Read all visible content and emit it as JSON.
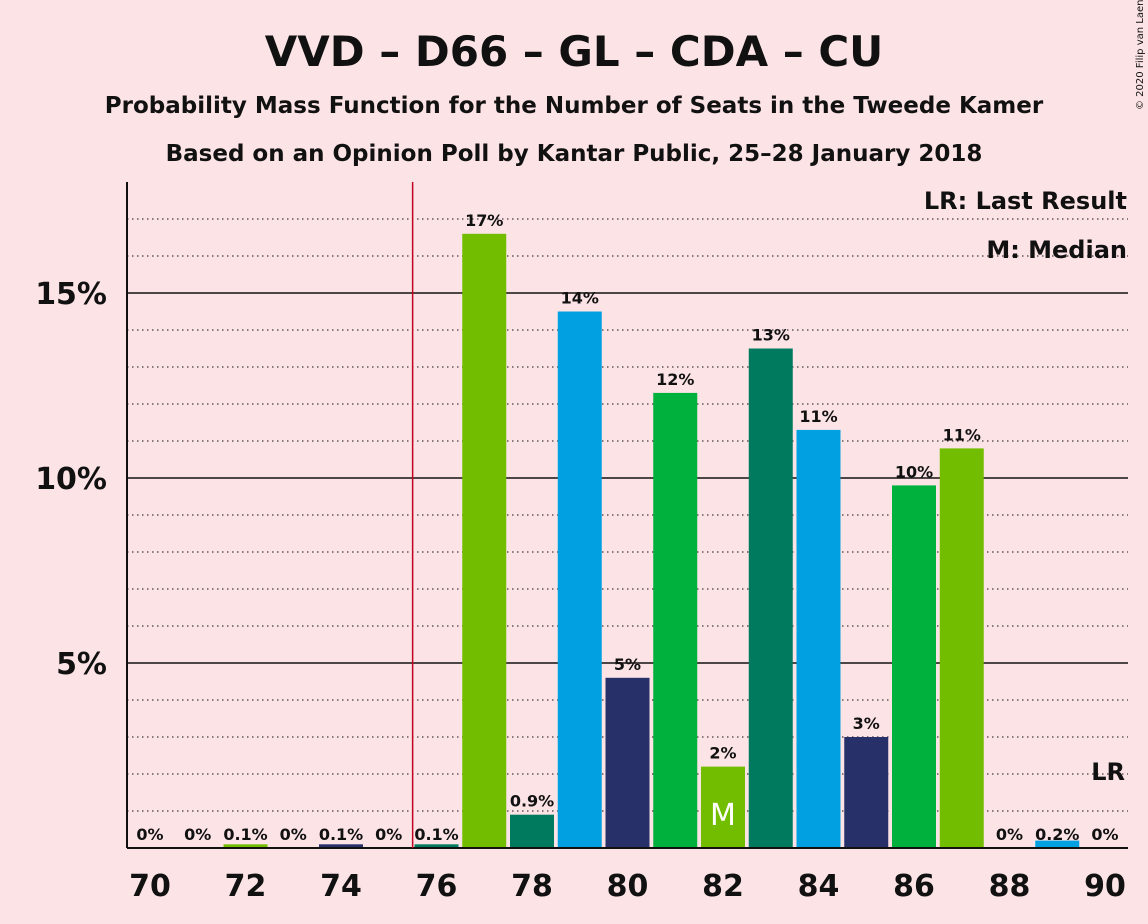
{
  "chart_data": {
    "type": "bar",
    "title": "VVD – D66 – GL – CDA – CU",
    "subtitle": "Probability Mass Function for the Number of Seats in the Tweede Kamer",
    "subtitle2": "Based on an Opinion Poll by Kantar Public, 25–28 January 2018",
    "copyright": "© 2020 Filip van Laenen",
    "legend": {
      "lr": "LR: Last Result",
      "m": "M: Median",
      "placement": "top-right"
    },
    "x": [
      70,
      71,
      72,
      73,
      74,
      75,
      76,
      77,
      78,
      79,
      80,
      81,
      82,
      83,
      84,
      85,
      86,
      87,
      88,
      89,
      90
    ],
    "values": [
      0,
      0,
      0.1,
      0,
      0.1,
      0,
      0.1,
      16.6,
      0.9,
      14.5,
      4.6,
      12.3,
      2.2,
      13.5,
      11.3,
      3.0,
      9.8,
      10.8,
      0,
      0.2,
      0
    ],
    "labels": [
      "0%",
      "0%",
      "0.1%",
      "0%",
      "0.1%",
      "0%",
      "0.1%",
      "17%",
      "0.9%",
      "14%",
      "5%",
      "12%",
      "2%",
      "13%",
      "11%",
      "3%",
      "10%",
      "11%",
      "0%",
      "0.2%",
      "0%"
    ],
    "bar_colors": [
      "#73bd00",
      "#00a0e1",
      "#73bd00",
      "#00a0e1",
      "#273069",
      "#00b13d",
      "#007a5e",
      "#73bd00",
      "#007a5e",
      "#00a0e1",
      "#273069",
      "#00b13d",
      "#73bd00",
      "#007a5e",
      "#00a0e1",
      "#273069",
      "#00b13d",
      "#73bd00",
      "#007a5e",
      "#00a0e1",
      "#273069"
    ],
    "x_ticks": [
      70,
      72,
      74,
      76,
      78,
      80,
      82,
      84,
      86,
      88,
      90
    ],
    "y_ticks": [
      {
        "value": 5,
        "label": "5%"
      },
      {
        "value": 10,
        "label": "10%"
      },
      {
        "value": 15,
        "label": "15%"
      }
    ],
    "ylim": [
      0,
      18
    ],
    "median_seat": 82,
    "median_marker": "M",
    "last_result_seat": 75.5,
    "last_result_marker_label": "LR",
    "grid": "dotted minor every 1%, solid major every 5%"
  }
}
